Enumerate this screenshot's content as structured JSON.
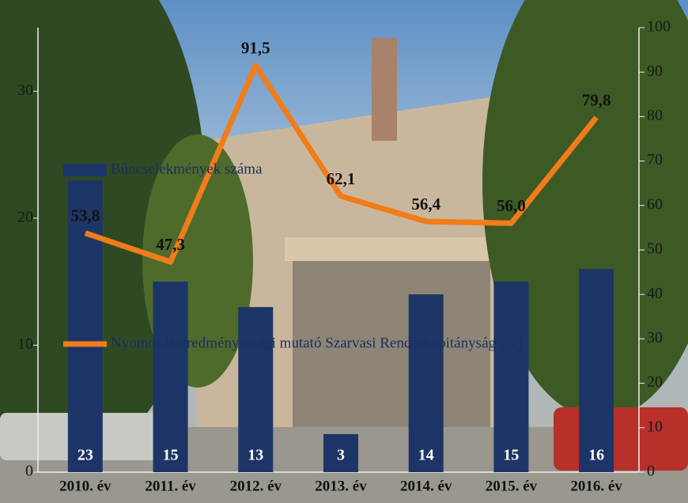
{
  "chart_data": {
    "type": "bar",
    "categories": [
      "2010. év",
      "2011. év",
      "2012. év",
      "2013. év",
      "2014. év",
      "2015. év",
      "2016. év"
    ],
    "series": [
      {
        "name": "Bűncselekmények száma",
        "type": "bar",
        "color": "#1d3566",
        "axis": "y",
        "values": [
          23,
          15,
          13,
          3,
          14,
          15,
          16
        ]
      },
      {
        "name": "Nyomozás-eredményességi mutató Szarvasi Rendőrkapitányság (%)",
        "type": "line",
        "color": "#f07c1a",
        "axis": "y2",
        "values": [
          53.8,
          47.3,
          91.5,
          62.1,
          56.4,
          56.0,
          79.8
        ],
        "value_labels": [
          "53,8",
          "47,3",
          "91,5",
          "62,1",
          "56,4",
          "56,0",
          "79,8"
        ]
      }
    ],
    "ylim": [
      0,
      35
    ],
    "yticks": [
      0,
      10,
      20,
      30
    ],
    "y2lim": [
      0,
      100
    ],
    "y2ticks": [
      0,
      10,
      20,
      30,
      40,
      50,
      60,
      70,
      80,
      90,
      100
    ]
  }
}
